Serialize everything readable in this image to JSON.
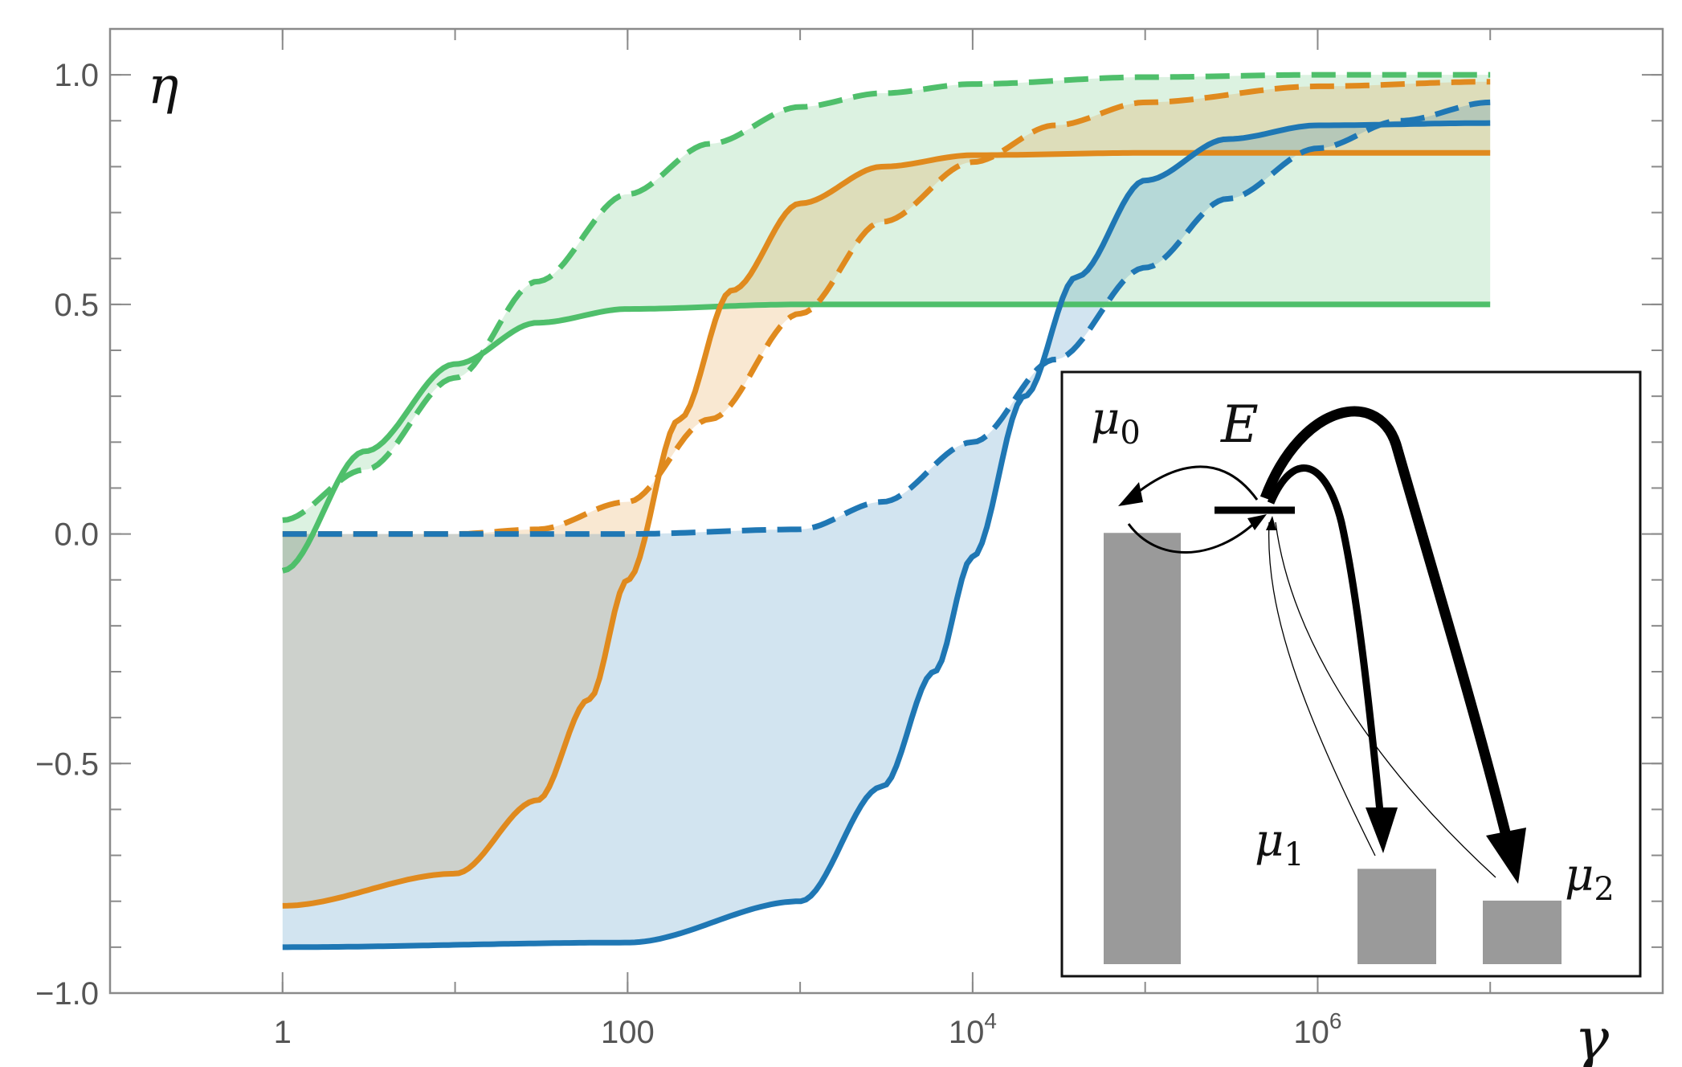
{
  "chart_data": {
    "type": "line",
    "xscale": "log",
    "xlim": [
      0.1,
      100000000
    ],
    "ylim": [
      -1.0,
      1.1
    ],
    "xlabel": "γ",
    "ylabel": "η",
    "xticks": [
      {
        "value": 1,
        "label": "1"
      },
      {
        "value": 100,
        "label": "100"
      },
      {
        "value": 10000,
        "label": "10",
        "exponent": "4"
      },
      {
        "value": 1000000,
        "label": "10",
        "exponent": "6"
      }
    ],
    "yticks": [
      {
        "value": 1.0,
        "label": "1.0"
      },
      {
        "value": 0.5,
        "label": "0.5"
      },
      {
        "value": 0.0,
        "label": "0.0"
      },
      {
        "value": -0.5,
        "label": "−0.5"
      },
      {
        "value": -1.0,
        "label": "−1.0"
      }
    ],
    "grid": false,
    "legend": "none",
    "colors": {
      "green": "#4daf4a",
      "green_solid": "#3cb55a",
      "orange": "#e08a1e",
      "blue": "#1f77b4"
    },
    "series": [
      {
        "key": "green-solid",
        "color": "#4fbf6b",
        "style": "solid",
        "x": [
          1,
          3,
          10,
          30,
          100,
          1000,
          10000,
          100000,
          1000000,
          10000000
        ],
        "y": [
          -0.08,
          0.18,
          0.37,
          0.46,
          0.49,
          0.5,
          0.5,
          0.5,
          0.5,
          0.5
        ]
      },
      {
        "key": "green-dashed",
        "color": "#4fbf6b",
        "style": "dashed",
        "x": [
          1,
          3,
          10,
          30,
          100,
          300,
          1000,
          3000,
          10000,
          100000,
          1000000,
          10000000
        ],
        "y": [
          0.03,
          0.14,
          0.34,
          0.55,
          0.74,
          0.85,
          0.93,
          0.96,
          0.98,
          0.995,
          1.0,
          1.0
        ]
      },
      {
        "key": "orange-solid",
        "color": "#e08a1e",
        "style": "solid",
        "x": [
          1,
          10,
          30,
          60,
          100,
          200,
          400,
          1000,
          3000,
          10000,
          100000,
          1000000,
          10000000
        ],
        "y": [
          -0.81,
          -0.74,
          -0.58,
          -0.36,
          -0.1,
          0.25,
          0.53,
          0.72,
          0.8,
          0.825,
          0.83,
          0.83,
          0.83
        ]
      },
      {
        "key": "orange-dashed",
        "color": "#e08a1e",
        "style": "dashed",
        "x": [
          1,
          10,
          30,
          100,
          300,
          1000,
          3000,
          10000,
          30000,
          100000,
          1000000,
          10000000
        ],
        "y": [
          0.0,
          0.0,
          0.01,
          0.07,
          0.25,
          0.48,
          0.68,
          0.81,
          0.89,
          0.94,
          0.975,
          0.985
        ]
      },
      {
        "key": "blue-solid",
        "color": "#1f77b4",
        "style": "solid",
        "x": [
          1,
          100,
          1000,
          3000,
          6000,
          10000,
          20000,
          40000,
          100000,
          300000,
          1000000,
          10000000
        ],
        "y": [
          -0.9,
          -0.89,
          -0.8,
          -0.55,
          -0.3,
          -0.05,
          0.3,
          0.56,
          0.77,
          0.86,
          0.89,
          0.895
        ]
      },
      {
        "key": "blue-dashed",
        "color": "#1f77b4",
        "style": "dashed",
        "x": [
          1,
          100,
          1000,
          3000,
          10000,
          30000,
          100000,
          300000,
          1000000,
          3000000,
          10000000
        ],
        "y": [
          0.0,
          0.0,
          0.01,
          0.07,
          0.2,
          0.38,
          0.58,
          0.73,
          0.84,
          0.9,
          0.94
        ]
      }
    ],
    "bands": [
      {
        "key": "green-band",
        "lower": "green-solid",
        "upper": "green-dashed",
        "color": "#4fbf6b",
        "opacity": 0.2
      },
      {
        "key": "orange-band",
        "lower": "orange-solid",
        "upper": "orange-dashed",
        "color": "#e08a1e",
        "opacity": 0.2
      },
      {
        "key": "blue-band",
        "lower": "blue-solid",
        "upper": "blue-dashed",
        "color": "#1f77b4",
        "opacity": 0.2
      }
    ]
  },
  "inset": {
    "labels": {
      "mu0": {
        "base": "μ",
        "sub": "0"
      },
      "mu1": {
        "base": "μ",
        "sub": "1"
      },
      "mu2": {
        "base": "μ",
        "sub": "2"
      },
      "energy": "E"
    },
    "bars": [
      {
        "key": "mu0",
        "level": 0.95
      },
      {
        "key": "mu1",
        "level": 0.21
      },
      {
        "key": "mu2",
        "level": 0.14
      }
    ],
    "colors": {
      "bar": "#9a9a9a",
      "arrow": "#000000"
    }
  }
}
